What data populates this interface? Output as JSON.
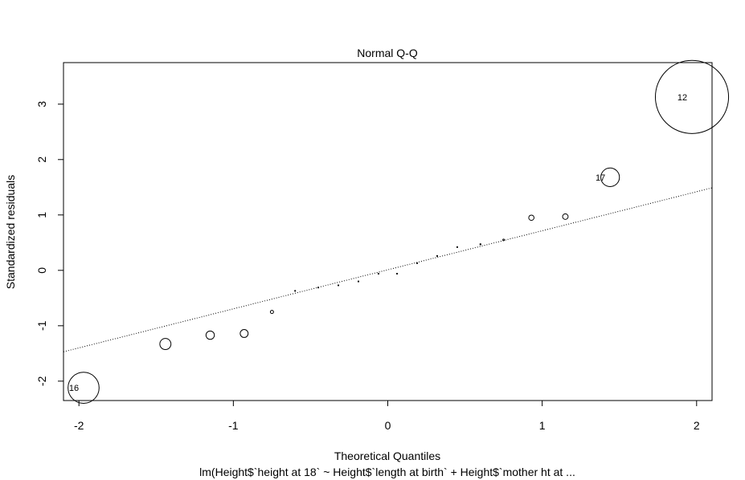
{
  "chart_data": {
    "type": "scatter",
    "title": "Normal Q-Q",
    "xlabel": "Theoretical Quantiles",
    "ylabel": "Standardized residuals",
    "subtitle": "lm(Height$`height at 18` ~ Height$`length at birth` + Height$`mother ht at  ...",
    "xlim": [
      -2.1,
      2.1
    ],
    "ylim": [
      -2.35,
      3.75
    ],
    "x_ticks": [
      -2,
      -1,
      0,
      1,
      2
    ],
    "y_ticks": [
      -2,
      -1,
      0,
      1,
      2,
      3
    ],
    "x_tick_labels": [
      "-2",
      "-1",
      "0",
      "1",
      "2"
    ],
    "y_tick_labels": [
      "-2",
      "-1",
      "0",
      "1",
      "2",
      "3"
    ],
    "grid": false,
    "marker": "open circle, radius proportional to |residual|",
    "points": [
      {
        "x": -1.97,
        "y": -2.12,
        "label": "16"
      },
      {
        "x": -1.44,
        "y": -1.33
      },
      {
        "x": -1.15,
        "y": -1.17
      },
      {
        "x": -0.93,
        "y": -1.14
      },
      {
        "x": -0.75,
        "y": -0.75
      },
      {
        "x": -0.6,
        "y": -0.37
      },
      {
        "x": -0.45,
        "y": -0.31
      },
      {
        "x": -0.32,
        "y": -0.27
      },
      {
        "x": -0.19,
        "y": -0.2
      },
      {
        "x": -0.06,
        "y": -0.06
      },
      {
        "x": 0.06,
        "y": -0.06
      },
      {
        "x": 0.19,
        "y": 0.13
      },
      {
        "x": 0.32,
        "y": 0.26
      },
      {
        "x": 0.45,
        "y": 0.42
      },
      {
        "x": 0.6,
        "y": 0.47
      },
      {
        "x": 0.75,
        "y": 0.55
      },
      {
        "x": 0.93,
        "y": 0.95
      },
      {
        "x": 1.15,
        "y": 0.97
      },
      {
        "x": 1.44,
        "y": 1.68,
        "label": "17"
      },
      {
        "x": 1.97,
        "y": 3.13,
        "label": "12"
      }
    ],
    "reference_line": {
      "style": "dotted",
      "points": [
        [
          -2.1,
          -1.47
        ],
        [
          2.1,
          1.49
        ]
      ]
    }
  }
}
